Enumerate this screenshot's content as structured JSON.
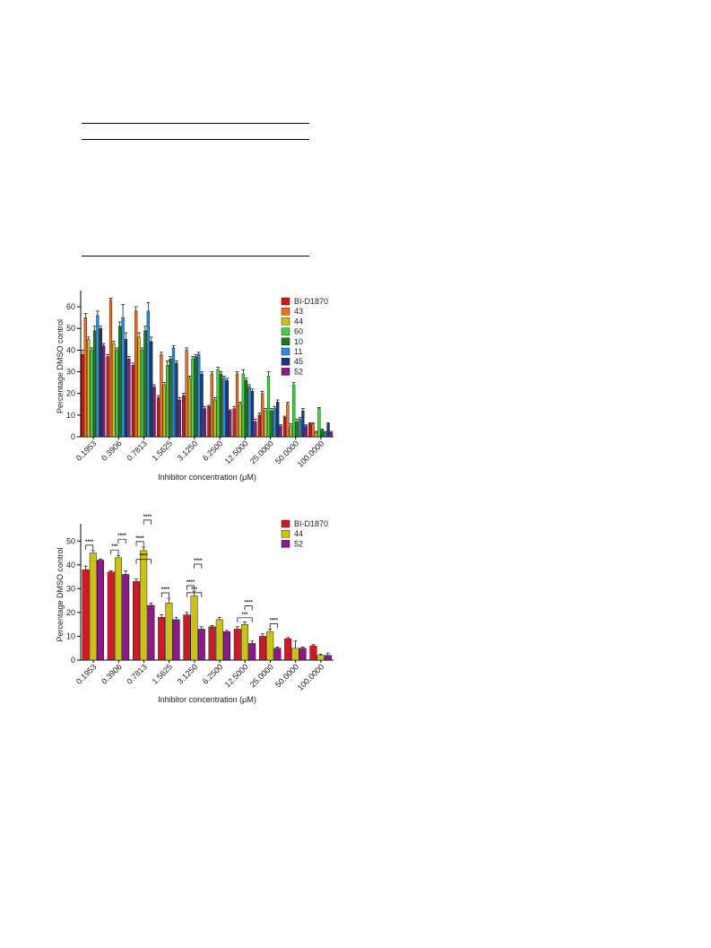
{
  "legend_placement": "top-right",
  "chart_data": [
    {
      "type": "bar",
      "xlabel": "Inhibitor concentration (μM)",
      "ylabel": "Percentage DMSO control",
      "ylim": [
        0,
        65
      ],
      "yticks": [
        0,
        10,
        20,
        30,
        40,
        50,
        60
      ],
      "grid": false,
      "categories": [
        "0.1953",
        "0.3906",
        "0.7813",
        "1.5625",
        "3.1250",
        "6.2500",
        "12.5000",
        "25.0000",
        "50.0000",
        "100.0000"
      ],
      "series": [
        {
          "name": "BI-D1870",
          "color": "#cc1a1a",
          "values": [
            38,
            37,
            33,
            18,
            19,
            14,
            13,
            10,
            9,
            6
          ],
          "errors": [
            2,
            1,
            1,
            1,
            1,
            0.5,
            1,
            1,
            0.5,
            0.5
          ]
        },
        {
          "name": "43",
          "color": "#f07020",
          "values": [
            55,
            63,
            58,
            38,
            40,
            29,
            29,
            20,
            15,
            6
          ],
          "errors": [
            2,
            1,
            2,
            1,
            1,
            1,
            1,
            1,
            1,
            0.5
          ]
        },
        {
          "name": "44",
          "color": "#c8c21a",
          "values": [
            45,
            43,
            46,
            24,
            27,
            17,
            15,
            12,
            5,
            2
          ],
          "errors": [
            1,
            1,
            2,
            1,
            1,
            1,
            1,
            1,
            1,
            0.5
          ]
        },
        {
          "name": "60",
          "color": "#3ed63e",
          "values": [
            40,
            40,
            40,
            33,
            36,
            31,
            29,
            28,
            24,
            13
          ],
          "errors": [
            1,
            1,
            1,
            2,
            1,
            1,
            2,
            2,
            1,
            0.5
          ]
        },
        {
          "name": "10",
          "color": "#1f7a1f",
          "values": [
            49,
            51,
            49,
            36,
            37,
            29,
            26,
            12,
            7,
            3
          ],
          "errors": [
            2,
            2,
            2,
            1,
            1,
            1,
            1,
            1,
            1,
            0.5
          ]
        },
        {
          "name": "11",
          "color": "#2a8ee0",
          "values": [
            56,
            55,
            58,
            41,
            38,
            27,
            23,
            13,
            8,
            2
          ],
          "errors": [
            2,
            6,
            4,
            1,
            1,
            1,
            1,
            1,
            1,
            0.5
          ]
        },
        {
          "name": "45",
          "color": "#1a3a80",
          "values": [
            50,
            45,
            44,
            34,
            29,
            26,
            21,
            16,
            12,
            6
          ],
          "errors": [
            1,
            3,
            2,
            1,
            1,
            1,
            1,
            1,
            1,
            0.5
          ]
        },
        {
          "name": "52",
          "color": "#8a1a8a",
          "values": [
            42,
            36,
            23,
            17,
            13,
            12,
            7,
            5,
            5,
            2
          ],
          "errors": [
            1,
            1,
            1,
            1,
            1,
            0.5,
            1,
            0.5,
            0.5,
            0.5
          ]
        }
      ]
    },
    {
      "type": "bar",
      "xlabel": "Inhibitor concentration (μM)",
      "ylabel": "Percentage DMSO control",
      "ylim": [
        0,
        55
      ],
      "yticks": [
        0,
        10,
        20,
        30,
        40,
        50
      ],
      "grid": false,
      "categories": [
        "0.1953",
        "0.3906",
        "0.7813",
        "1.5625",
        "3.1250",
        "6.2500",
        "12.5000",
        "25.0000",
        "50.0000",
        "100.0000"
      ],
      "series": [
        {
          "name": "BI-D1870",
          "color": "#cc1a2a",
          "values": [
            38,
            37,
            33,
            18,
            19,
            14,
            13,
            10,
            9,
            6
          ],
          "errors": [
            1.5,
            0.5,
            1,
            1,
            1,
            0.5,
            1,
            1,
            0.5,
            0.5
          ]
        },
        {
          "name": "44",
          "color": "#c8c21a",
          "values": [
            45,
            43,
            46,
            24,
            27,
            17,
            15,
            12,
            5,
            2
          ],
          "errors": [
            1,
            1,
            1.5,
            2,
            2,
            1,
            1,
            1,
            3,
            0.5
          ]
        },
        {
          "name": "52",
          "color": "#8a1a8a",
          "values": [
            42,
            36,
            23,
            17,
            13,
            12,
            7,
            5,
            5,
            2
          ],
          "errors": [
            0.5,
            1.5,
            1,
            1,
            1,
            0.5,
            1,
            0.5,
            0.5,
            1
          ]
        }
      ],
      "significance": [
        {
          "category": 0,
          "from": 0,
          "to": 1,
          "label": "****"
        },
        {
          "category": 1,
          "from": 0,
          "to": 1,
          "label": "***"
        },
        {
          "category": 1,
          "from": 1,
          "to": 2,
          "label": "****"
        },
        {
          "category": 2,
          "from": 0,
          "to": 1,
          "label": "****"
        },
        {
          "category": 2,
          "from": 0,
          "to": 2,
          "label": "****"
        },
        {
          "category": 2,
          "from": 1,
          "to": 2,
          "label": "****"
        },
        {
          "category": 3,
          "from": 0,
          "to": 1,
          "label": "****"
        },
        {
          "category": 4,
          "from": 0,
          "to": 1,
          "label": "****"
        },
        {
          "category": 4,
          "from": 0,
          "to": 2,
          "label": "***"
        },
        {
          "category": 4,
          "from": 1,
          "to": 2,
          "label": "****"
        },
        {
          "category": 6,
          "from": 0,
          "to": 2,
          "label": "***"
        },
        {
          "category": 6,
          "from": 1,
          "to": 2,
          "label": "****"
        },
        {
          "category": 7,
          "from": 1,
          "to": 2,
          "label": "****"
        }
      ]
    }
  ]
}
